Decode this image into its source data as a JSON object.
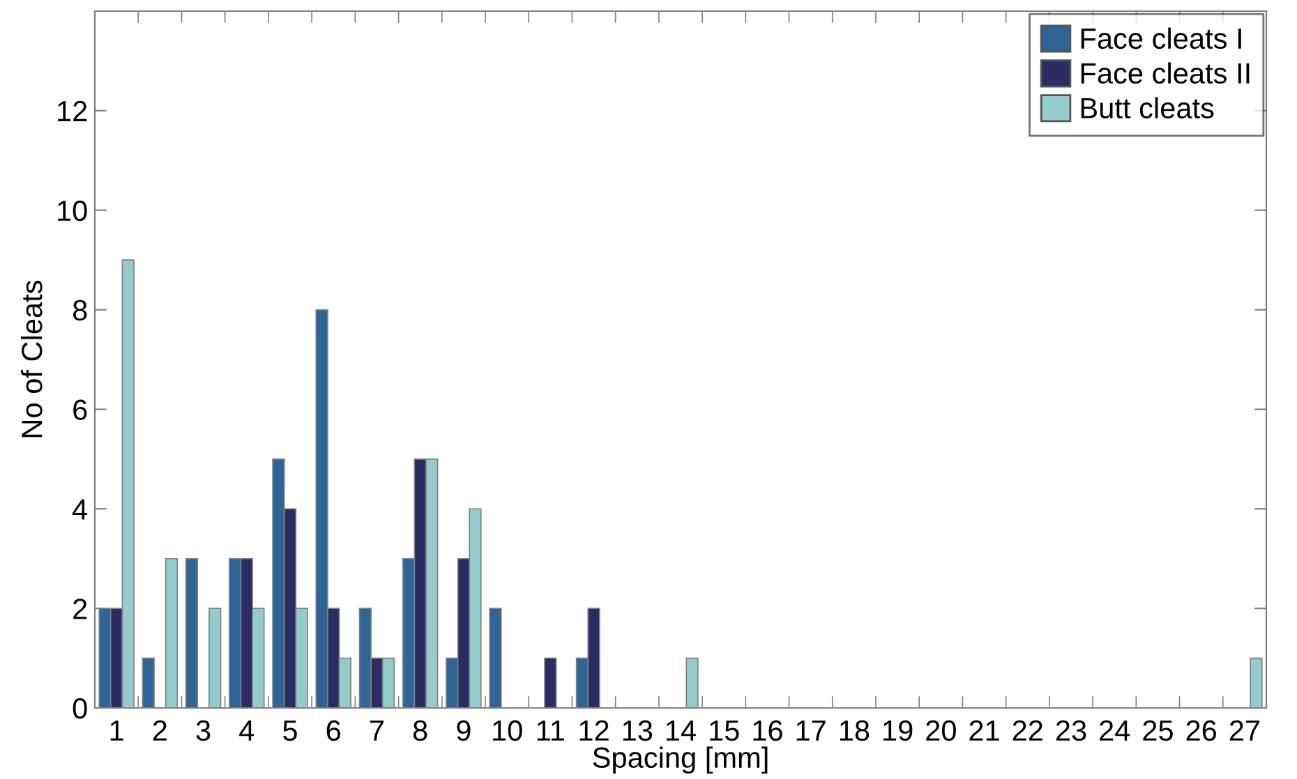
{
  "chart_data": {
    "type": "bar",
    "xlabel": "Spacing [mm]",
    "ylabel": "No of Cleats",
    "categories": [
      "1",
      "2",
      "3",
      "4",
      "5",
      "6",
      "7",
      "8",
      "9",
      "10",
      "11",
      "12",
      "13",
      "14",
      "15",
      "16",
      "17",
      "18",
      "19",
      "20",
      "21",
      "22",
      "23",
      "24",
      "25",
      "26",
      "27"
    ],
    "series": [
      {
        "name": "Face cleats I",
        "color": "#2f6497",
        "values": [
          2,
          1,
          3,
          3,
          5,
          8,
          2,
          3,
          1,
          2,
          0,
          1,
          0,
          0,
          0,
          0,
          0,
          0,
          0,
          0,
          0,
          0,
          0,
          0,
          0,
          0,
          0
        ]
      },
      {
        "name": "Face cleats II",
        "color": "#2c2c64",
        "values": [
          2,
          0,
          0,
          3,
          4,
          2,
          1,
          5,
          3,
          0,
          1,
          2,
          0,
          0,
          0,
          0,
          0,
          0,
          0,
          0,
          0,
          0,
          0,
          0,
          0,
          0,
          0
        ]
      },
      {
        "name": "Butt cleats",
        "color": "#94cccc",
        "values": [
          9,
          3,
          2,
          2,
          2,
          1,
          1,
          5,
          4,
          0,
          0,
          0,
          0,
          1,
          0,
          0,
          0,
          0,
          0,
          0,
          0,
          0,
          0,
          0,
          0,
          0,
          1
        ]
      }
    ],
    "ylim": [
      0,
      14
    ],
    "yticks": [
      0,
      2,
      4,
      6,
      8,
      10,
      12
    ],
    "grid": false,
    "legend": "top right"
  }
}
